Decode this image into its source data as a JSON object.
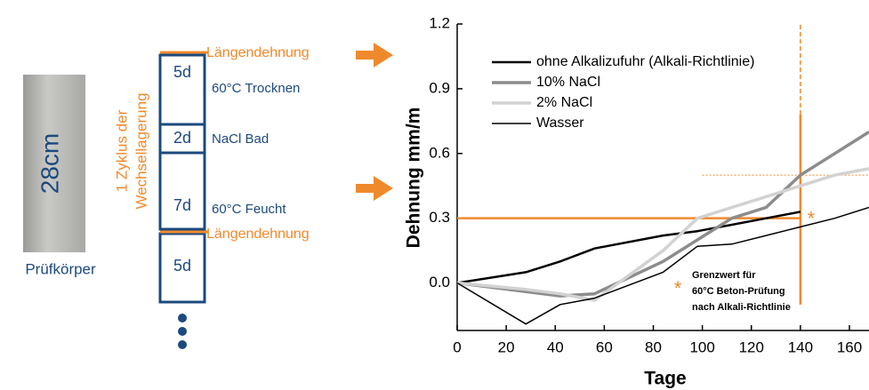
{
  "diagram": {
    "specimen": {
      "size": "28cm",
      "label": "Prüfkörper"
    },
    "cycle_label": [
      "1 Zyklus der",
      "Wechsellagerung"
    ],
    "stages": [
      {
        "days": "5d",
        "label": "60°C Trocknen"
      },
      {
        "days": "2d",
        "label": "NaCl Bad"
      },
      {
        "days": "7d",
        "label": "60°C Feucht"
      },
      {
        "days": "5d"
      }
    ],
    "measurement": [
      "Längendehnung",
      "Längendehnung"
    ]
  },
  "chart_data": {
    "type": "line",
    "xlabel": "Tage",
    "ylabel": "Dehnung mm/m",
    "x": [
      0,
      28,
      42,
      56,
      84,
      98,
      112,
      126,
      140,
      154,
      168
    ],
    "xlim": [
      0,
      168
    ],
    "ylim": [
      -0.22,
      1.2
    ],
    "xticks": [
      0,
      20,
      40,
      60,
      80,
      100,
      120,
      140,
      160
    ],
    "yticks": [
      {
        "value": 0,
        "label": "0.0"
      },
      0.3,
      0.6,
      0.9,
      1.2
    ],
    "series": [
      {
        "name": "ohne Alkalizufuhr (Alkali-Richtlinie)",
        "color": "#000000",
        "line_width": 2.5,
        "values": [
          0,
          0.05,
          0.1,
          0.16,
          0.22,
          0.24,
          0.27,
          0.3,
          0.33,
          null,
          null
        ]
      },
      {
        "name": "10% NaCl",
        "color": "#8c8c8c",
        "line_width": 3.5,
        "values": [
          0,
          -0.04,
          -0.06,
          -0.05,
          0.1,
          0.2,
          0.3,
          0.35,
          0.5,
          0.6,
          0.7
        ]
      },
      {
        "name": "2% NaCl",
        "color": "#d2d2d2",
        "line_width": 3.5,
        "values": [
          0,
          -0.03,
          -0.05,
          -0.08,
          0.15,
          0.3,
          0.35,
          0.4,
          0.45,
          0.5,
          0.53
        ]
      },
      {
        "name": "Wasser",
        "color": "#000000",
        "line_width": 1.5,
        "values": [
          0,
          -0.19,
          -0.1,
          -0.07,
          0.05,
          0.17,
          0.18,
          0.22,
          0.26,
          0.3,
          0.35
        ]
      }
    ],
    "threshold_y": 0.3,
    "threshold_x": 140,
    "dotted_y": 0.5,
    "limit_color": "#ef8a2c",
    "annotation": {
      "marker": "*",
      "text": [
        "Grenzwert für",
        "60°C Beton-Prüfung",
        "nach Alkali-Richtlinie"
      ]
    }
  }
}
